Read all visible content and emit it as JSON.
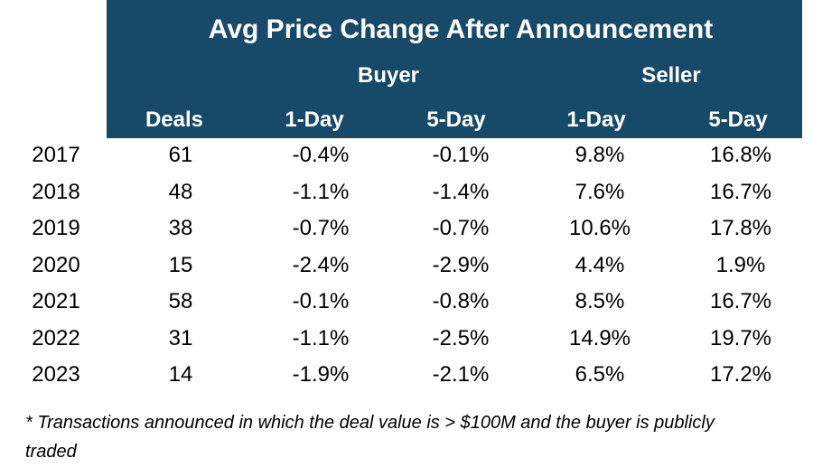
{
  "table": {
    "title": "Avg Price Change After Announcement",
    "groups": [
      "Buyer",
      "Seller"
    ],
    "columns": [
      "Deals",
      "1-Day",
      "5-Day",
      "1-Day",
      "5-Day"
    ],
    "rows": [
      [
        "2017",
        61,
        "-0.4%",
        "-0.1%",
        "9.8%",
        "16.8%"
      ],
      [
        "2018",
        48,
        "-1.1%",
        "-1.4%",
        "7.6%",
        "16.7%"
      ],
      [
        "2019",
        38,
        "-0.7%",
        "-0.7%",
        "10.6%",
        "17.8%"
      ],
      [
        "2020",
        15,
        "-2.4%",
        "-2.9%",
        "4.4%",
        "1.9%"
      ],
      [
        "2021",
        58,
        "-0.1%",
        "-0.8%",
        "8.5%",
        "16.7%"
      ],
      [
        "2022",
        31,
        "-1.1%",
        "-2.5%",
        "14.9%",
        "19.7%"
      ],
      [
        "2023",
        14,
        "-1.9%",
        "-2.1%",
        "6.5%",
        "17.2%"
      ]
    ],
    "footnote": "* Transactions announced in which the deal value is > $100M and the buyer is publicly traded"
  }
}
